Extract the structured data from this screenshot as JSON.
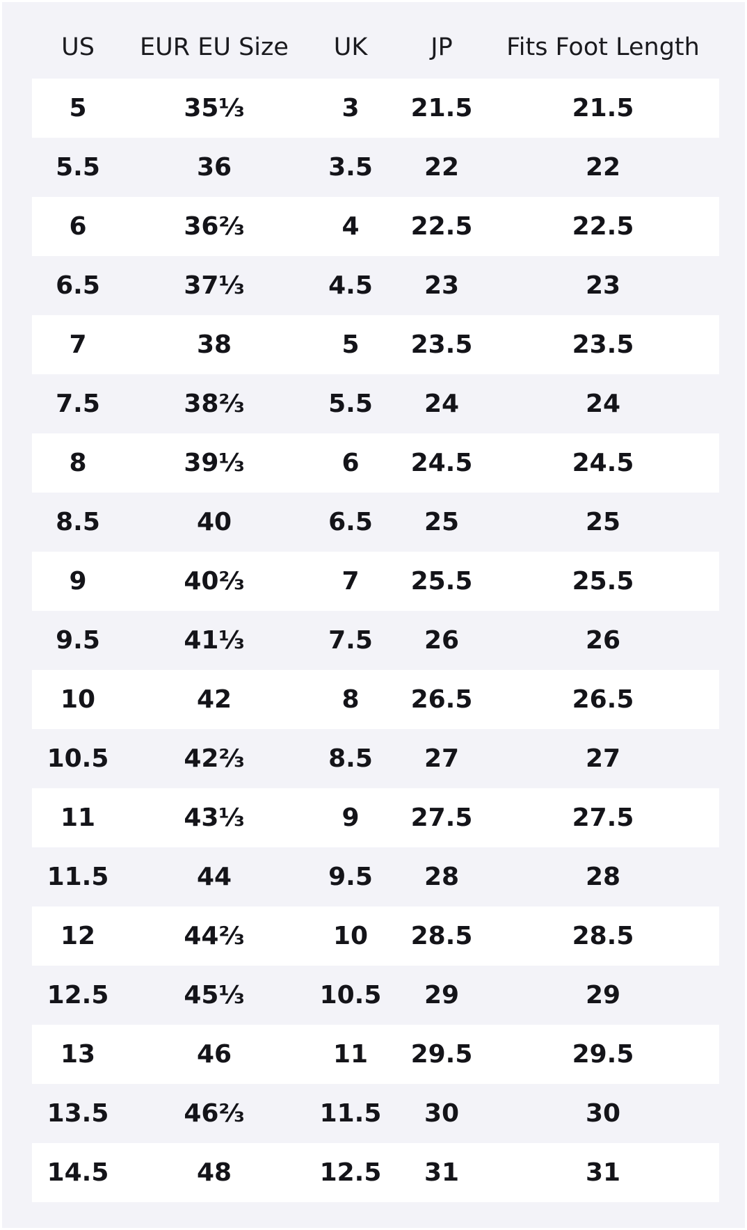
{
  "table": {
    "columns": [
      "US",
      "EUR EU Size",
      "UK",
      "JP",
      "Fits Foot Length"
    ],
    "rows": [
      [
        "5",
        "35⅓",
        "3",
        "21.5",
        "21.5"
      ],
      [
        "5.5",
        "36",
        "3.5",
        "22",
        "22"
      ],
      [
        "6",
        "36⅔",
        "4",
        "22.5",
        "22.5"
      ],
      [
        "6.5",
        "37⅓",
        "4.5",
        "23",
        "23"
      ],
      [
        "7",
        "38",
        "5",
        "23.5",
        "23.5"
      ],
      [
        "7.5",
        "38⅔",
        "5.5",
        "24",
        "24"
      ],
      [
        "8",
        "39⅓",
        "6",
        "24.5",
        "24.5"
      ],
      [
        "8.5",
        "40",
        "6.5",
        "25",
        "25"
      ],
      [
        "9",
        "40⅔",
        "7",
        "25.5",
        "25.5"
      ],
      [
        "9.5",
        "41⅓",
        "7.5",
        "26",
        "26"
      ],
      [
        "10",
        "42",
        "8",
        "26.5",
        "26.5"
      ],
      [
        "10.5",
        "42⅔",
        "8.5",
        "27",
        "27"
      ],
      [
        "11",
        "43⅓",
        "9",
        "27.5",
        "27.5"
      ],
      [
        "11.5",
        "44",
        "9.5",
        "28",
        "28"
      ],
      [
        "12",
        "44⅔",
        "10",
        "28.5",
        "28.5"
      ],
      [
        "12.5",
        "45⅓",
        "10.5",
        "29",
        "29"
      ],
      [
        "13",
        "46",
        "11",
        "29.5",
        "29.5"
      ],
      [
        "13.5",
        "46⅔",
        "11.5",
        "30",
        "30"
      ],
      [
        "14.5",
        "48",
        "12.5",
        "31",
        "31"
      ]
    ]
  }
}
